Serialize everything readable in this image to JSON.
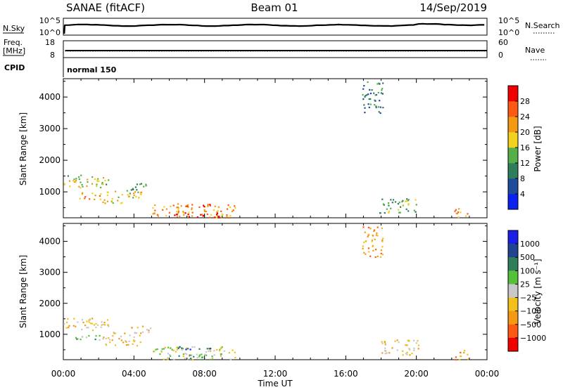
{
  "header": {
    "station": "SANAE (fitACF)",
    "beam": "Beam 01",
    "date": "14/Sep/2019"
  },
  "colors": {
    "power": [
      "#0a21f0",
      "#1d4c9c",
      "#2f7d5b",
      "#55b04a",
      "#f2d21f",
      "#f39a12",
      "#ff5a14",
      "#f10000"
    ],
    "velocity": [
      "#1a1ee6",
      "#20448f",
      "#2f7d5b",
      "#55c03a",
      "#c8c8c8",
      "#f2c01a",
      "#f39a12",
      "#ff5a14",
      "#f10000"
    ]
  },
  "chart_data": [
    {
      "type": "line",
      "name": "nsky-nsearch",
      "left_label": "N.Sky",
      "right_label": "N.Search",
      "left_ticks": [
        "10^5",
        "10^0"
      ],
      "right_ticks": [
        "10^5",
        "10^0"
      ],
      "x_range": [
        0,
        24
      ],
      "nsky_level": 0.6
    },
    {
      "type": "line",
      "name": "freq-nave",
      "left_label": "Freq.",
      "left_unit": "[MHz]",
      "right_label": "Nave",
      "left_ticks": [
        "18",
        "8"
      ],
      "right_ticks": [
        "60",
        "0"
      ],
      "freq_mhz": 12,
      "nave": 22
    },
    {
      "type": "table",
      "name": "cpid",
      "label": "CPID",
      "mode": "normal 150"
    },
    {
      "type": "heatmap",
      "name": "power",
      "ylabel": "Slant Range [km]",
      "ylim": [
        180,
        4580
      ],
      "yticks": [
        1000,
        2000,
        3000,
        4000
      ],
      "colorbar_label": "Power [dB]",
      "colorbar_ticks": [
        "4",
        "8",
        "12",
        "16",
        "20",
        "24",
        "28"
      ],
      "regions": [
        {
          "x": [
            0.0,
            2.7
          ],
          "y": [
            1150,
            1550
          ],
          "level": 3.5
        },
        {
          "x": [
            0.6,
            2.1
          ],
          "y": [
            780,
            1000
          ],
          "level": 4.5
        },
        {
          "x": [
            2.2,
            4.4
          ],
          "y": [
            650,
            1100
          ],
          "level": 4
        },
        {
          "x": [
            3.8,
            5.0
          ],
          "y": [
            1050,
            1300
          ],
          "level": 3
        },
        {
          "x": [
            5.0,
            9.7
          ],
          "y": [
            200,
            620
          ],
          "level": 5
        },
        {
          "x": [
            6.0,
            9.0
          ],
          "y": [
            200,
            360
          ],
          "level": 7
        },
        {
          "x": [
            6.2,
            8.4
          ],
          "y": [
            520,
            650
          ],
          "level": 6
        },
        {
          "x": [
            17.9,
            20.1
          ],
          "y": [
            350,
            850
          ],
          "level": 3
        },
        {
          "x": [
            22.1,
            23.0
          ],
          "y": [
            200,
            520
          ],
          "level": 5
        },
        {
          "x": [
            16.9,
            18.1
          ],
          "y": [
            3500,
            4500
          ],
          "level": 2
        }
      ]
    },
    {
      "type": "heatmap",
      "name": "velocity",
      "xlabel": "Time UT",
      "ylabel": "Slant Range [km]",
      "ylim": [
        180,
        4580
      ],
      "yticks": [
        1000,
        2000,
        3000,
        4000
      ],
      "xticks": [
        "00:00",
        "04:00",
        "08:00",
        "12:00",
        "16:00",
        "20:00",
        "00:00"
      ],
      "colorbar_label": "Velocity [m s⁻¹]",
      "colorbar_ticks": [
        "1000",
        "500",
        "100",
        "25",
        "−25",
        "−100",
        "−500",
        "−1000"
      ],
      "regions": [
        {
          "x": [
            0.0,
            2.7
          ],
          "y": [
            1150,
            1550
          ],
          "level": 5
        },
        {
          "x": [
            0.6,
            2.1
          ],
          "y": [
            780,
            1000
          ],
          "level": 3
        },
        {
          "x": [
            2.2,
            4.4
          ],
          "y": [
            650,
            1100
          ],
          "level": 5
        },
        {
          "x": [
            3.8,
            5.0
          ],
          "y": [
            1050,
            1300
          ],
          "level": 5
        },
        {
          "x": [
            5.0,
            9.7
          ],
          "y": [
            200,
            620
          ],
          "level": 4
        },
        {
          "x": [
            6.0,
            9.0
          ],
          "y": [
            200,
            360
          ],
          "level": 3
        },
        {
          "x": [
            6.2,
            8.4
          ],
          "y": [
            520,
            650
          ],
          "level": 1
        },
        {
          "x": [
            17.9,
            20.1
          ],
          "y": [
            350,
            850
          ],
          "level": 5
        },
        {
          "x": [
            22.1,
            23.0
          ],
          "y": [
            200,
            520
          ],
          "level": 6
        },
        {
          "x": [
            16.9,
            18.1
          ],
          "y": [
            3500,
            4500
          ],
          "level": 6
        }
      ]
    }
  ]
}
